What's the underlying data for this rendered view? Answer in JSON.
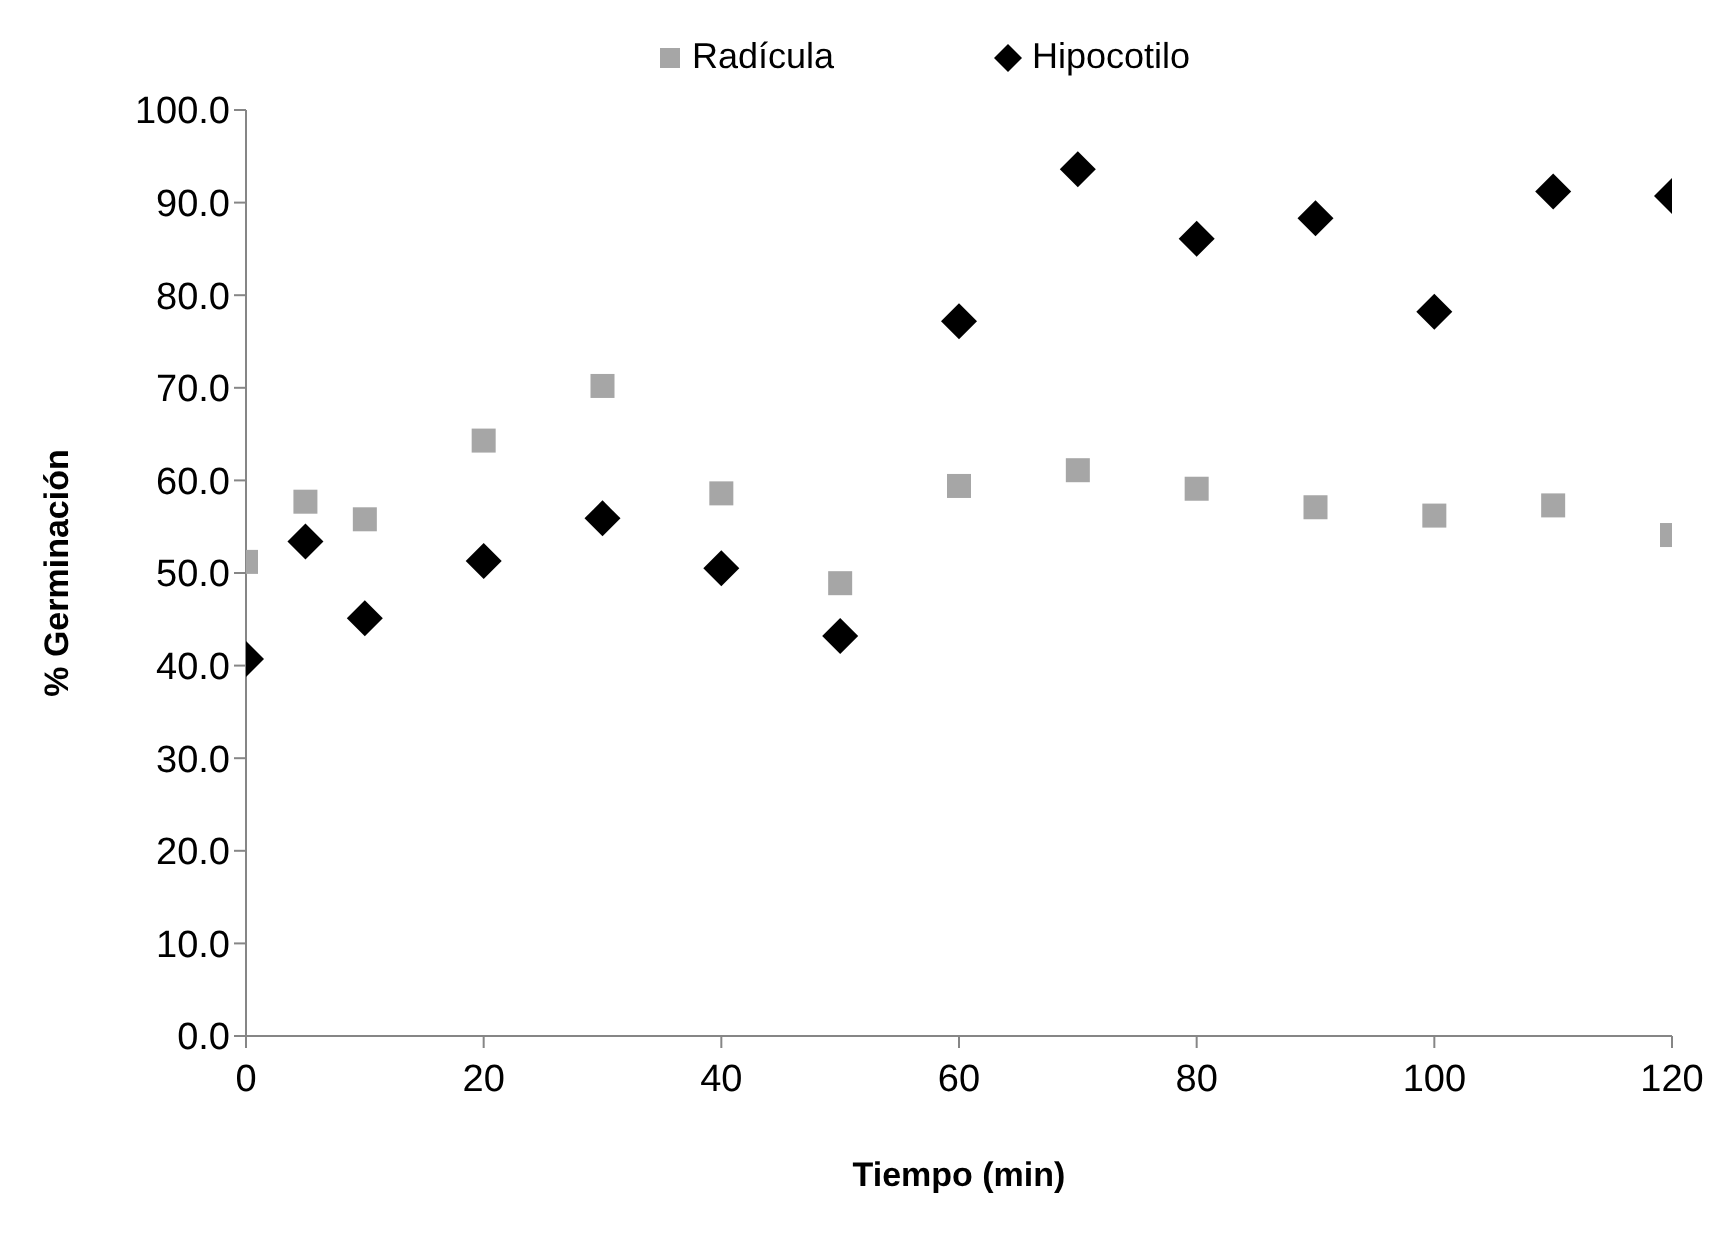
{
  "chart_data": {
    "type": "scatter",
    "xlabel": "Tiempo (min)",
    "ylabel": "%  Germinación",
    "x": [
      0,
      5,
      10,
      20,
      30,
      40,
      50,
      60,
      70,
      80,
      90,
      100,
      110,
      120
    ],
    "series": [
      {
        "name": "Radícula",
        "color": "#a6a6a6",
        "marker": "square",
        "values": [
          51.2,
          57.7,
          55.8,
          64.3,
          70.2,
          58.6,
          48.9,
          59.4,
          61.1,
          59.1,
          57.1,
          56.2,
          57.3,
          54.1
        ]
      },
      {
        "name": "Hipocotilo",
        "color": "#000000",
        "marker": "diamond",
        "values": [
          40.7,
          53.4,
          45.1,
          51.3,
          55.9,
          50.5,
          43.2,
          77.2,
          93.6,
          86.1,
          88.3,
          78.2,
          91.2,
          90.7
        ]
      }
    ],
    "xlim": [
      0,
      120
    ],
    "xticks": [
      0,
      20,
      40,
      60,
      80,
      100,
      120
    ],
    "ylim": [
      0,
      100
    ],
    "yticks": [
      {
        "value": 0,
        "label": "0.0"
      },
      {
        "value": 10,
        "label": "10.0"
      },
      {
        "value": 20,
        "label": "20.0"
      },
      {
        "value": 30,
        "label": "30.0"
      },
      {
        "value": 40,
        "label": "40.0"
      },
      {
        "value": 50,
        "label": "50.0"
      },
      {
        "value": 60,
        "label": "60.0"
      },
      {
        "value": 70,
        "label": "70.0"
      },
      {
        "value": 80,
        "label": "80.0"
      },
      {
        "value": 90,
        "label": "90.0"
      },
      {
        "value": 100,
        "label": "100.0"
      }
    ],
    "grid": false,
    "legend": "top"
  }
}
